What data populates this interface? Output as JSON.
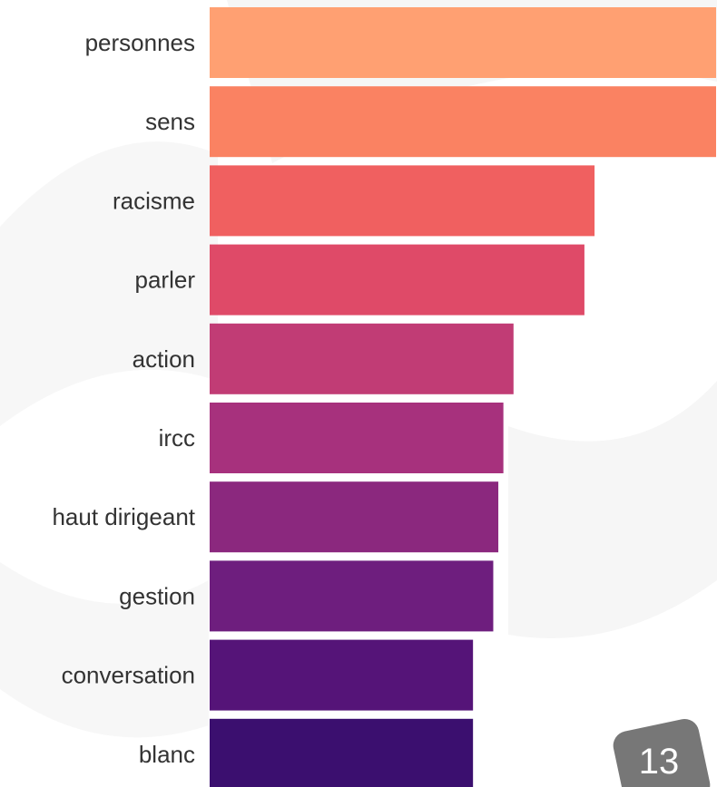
{
  "chart_data": {
    "type": "bar",
    "orientation": "horizontal",
    "categories": [
      "personnes",
      "sens",
      "racisme",
      "parler",
      "action",
      "ircc",
      "haut dirigeant",
      "gestion",
      "conversation",
      "blanc"
    ],
    "values": [
      100,
      100,
      76,
      74,
      60,
      58,
      57,
      56,
      52,
      52
    ],
    "colors": [
      "#FFA072",
      "#FA8262",
      "#F06060",
      "#DF4A68",
      "#C13C75",
      "#A7317D",
      "#8B287E",
      "#6E1E7E",
      "#551478",
      "#3B0F6F"
    ],
    "title": "",
    "xlabel": "",
    "ylabel": "",
    "xlim": [
      0,
      100
    ],
    "grid": false,
    "legend": false
  },
  "page": {
    "number": "13"
  }
}
